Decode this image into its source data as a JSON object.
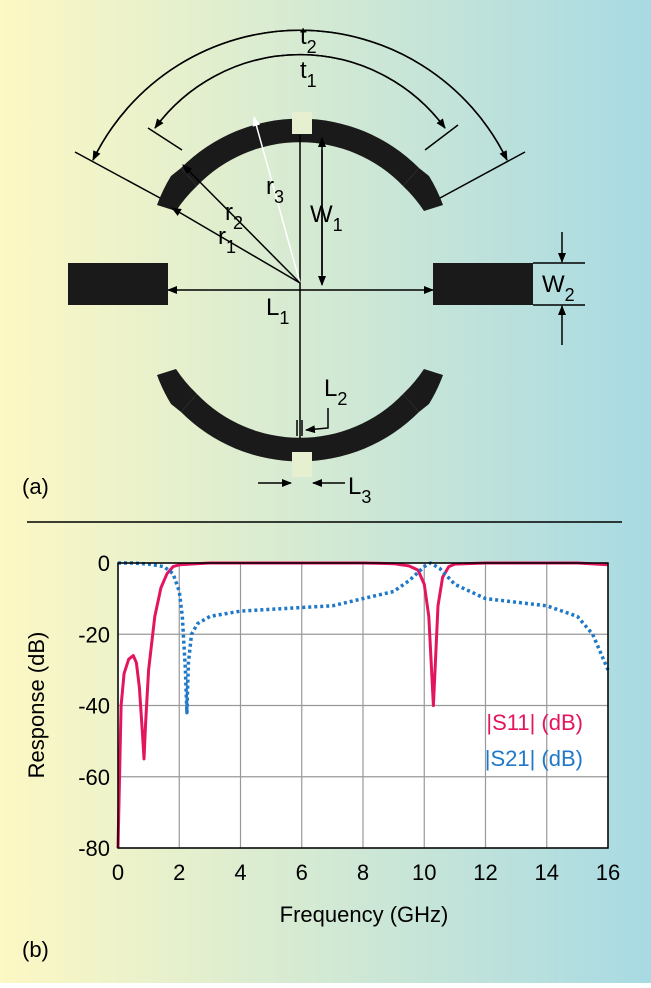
{
  "diagram": {
    "panel_label": "(a)",
    "labels": [
      {
        "text": "t",
        "sub": "2"
      },
      {
        "text": "t",
        "sub": "1"
      },
      {
        "text": "r",
        "sub": "3"
      },
      {
        "text": "r",
        "sub": "2"
      },
      {
        "text": "r",
        "sub": "1"
      },
      {
        "text": "W",
        "sub": "1"
      },
      {
        "text": "W",
        "sub": "2"
      },
      {
        "text": "L",
        "sub": "1"
      },
      {
        "text": "L",
        "sub": "2"
      },
      {
        "text": "L",
        "sub": "3"
      }
    ]
  },
  "chart_data": {
    "type": "line",
    "panel_label": "(b)",
    "x_label": "Frequency (GHz)",
    "y_label": "Response (dB)",
    "xlim": [
      0,
      16
    ],
    "xticks": [
      0,
      2,
      4,
      6,
      8,
      10,
      12,
      14,
      16
    ],
    "ylim": [
      -80,
      0
    ],
    "yticks": [
      -80,
      -60,
      -40,
      -20,
      0
    ],
    "grid": true,
    "series": [
      {
        "name": "|S11| (dB)",
        "color": "#e3155f",
        "style": "solid",
        "x": [
          0,
          0.1,
          0.2,
          0.35,
          0.5,
          0.6,
          0.7,
          0.8,
          0.85,
          0.9,
          1.0,
          1.2,
          1.4,
          1.6,
          1.8,
          2.0,
          3,
          5,
          8,
          9,
          9.5,
          9.8,
          10.0,
          10.15,
          10.3,
          10.45,
          10.6,
          10.8,
          11,
          12,
          13,
          14,
          15,
          16
        ],
        "values": [
          -80,
          -40,
          -31,
          -27,
          -26,
          -28,
          -35,
          -48,
          -55,
          -45,
          -30,
          -15,
          -7,
          -3,
          -1,
          -0.5,
          0,
          0,
          0,
          -0.2,
          -0.8,
          -2,
          -6,
          -15,
          -40,
          -12,
          -4,
          -1,
          -0.3,
          0,
          0,
          0,
          0,
          -0.5
        ]
      },
      {
        "name": "|S21| (dB)",
        "color": "#1f78c8",
        "style": "dotted",
        "x": [
          0,
          0.5,
          1,
          1.5,
          1.8,
          2.0,
          2.1,
          2.2,
          2.25,
          2.3,
          2.4,
          2.6,
          3,
          4,
          5,
          6,
          7,
          8,
          9,
          9.5,
          10,
          10.2,
          10.5,
          11,
          12,
          13,
          14,
          15,
          15.5,
          16
        ],
        "values": [
          0,
          0,
          -0.3,
          -1,
          -3,
          -8,
          -15,
          -30,
          -42,
          -28,
          -20,
          -17,
          -15,
          -13.5,
          -13,
          -12.5,
          -12,
          -10,
          -8,
          -5,
          -1,
          0,
          -1.5,
          -6,
          -10,
          -11,
          -12,
          -15,
          -20,
          -30
        ]
      }
    ]
  }
}
